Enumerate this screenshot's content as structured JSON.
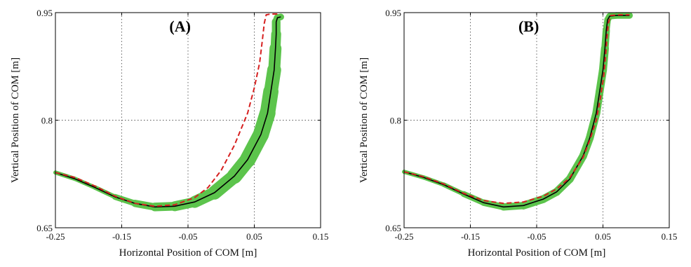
{
  "chart_data": [
    {
      "type": "line",
      "panel_label": "(A)",
      "xlabel": "Horizontal Position of COM [m]",
      "ylabel": "Vertical Position of COM [m]",
      "xlim": [
        -0.25,
        0.15
      ],
      "ylim": [
        0.65,
        0.95
      ],
      "xticks": [
        "-0.25",
        "-0.15",
        "-0.05",
        "0.05",
        "0.15"
      ],
      "yticks": [
        "0.65",
        "0.8",
        "0.95"
      ],
      "grid": true,
      "series": [
        {
          "style": "green-band",
          "color": "#5cc44c",
          "x": [
            -0.25,
            -0.22,
            -0.19,
            -0.16,
            -0.13,
            -0.1,
            -0.07,
            -0.04,
            -0.01,
            0.02,
            0.04,
            0.06,
            0.07,
            0.075,
            0.08,
            0.082,
            0.083,
            0.083,
            0.085,
            0.09
          ],
          "y": [
            0.727,
            0.718,
            0.706,
            0.693,
            0.684,
            0.679,
            0.68,
            0.686,
            0.699,
            0.722,
            0.745,
            0.78,
            0.81,
            0.84,
            0.87,
            0.9,
            0.92,
            0.937,
            0.943,
            0.944
          ],
          "band_halfwidth": [
            0.003,
            0.003,
            0.003,
            0.004,
            0.005,
            0.006,
            0.007,
            0.008,
            0.01,
            0.011,
            0.012,
            0.012,
            0.012,
            0.011,
            0.01,
            0.008,
            0.007,
            0.006,
            0.005,
            0.005
          ]
        },
        {
          "style": "solid",
          "color": "#000000",
          "x": [
            -0.25,
            -0.22,
            -0.19,
            -0.16,
            -0.13,
            -0.1,
            -0.07,
            -0.04,
            -0.01,
            0.02,
            0.04,
            0.06,
            0.07,
            0.075,
            0.08,
            0.082,
            0.083,
            0.083,
            0.085,
            0.09
          ],
          "y": [
            0.727,
            0.718,
            0.706,
            0.693,
            0.684,
            0.679,
            0.68,
            0.686,
            0.699,
            0.722,
            0.745,
            0.78,
            0.81,
            0.84,
            0.87,
            0.9,
            0.92,
            0.937,
            0.943,
            0.944
          ]
        },
        {
          "style": "dashed",
          "color": "#d62020",
          "x": [
            -0.25,
            -0.22,
            -0.19,
            -0.16,
            -0.13,
            -0.1,
            -0.07,
            -0.04,
            -0.02,
            0.0,
            0.02,
            0.04,
            0.05,
            0.058,
            0.062,
            0.065,
            0.068,
            0.075,
            0.085
          ],
          "y": [
            0.727,
            0.72,
            0.708,
            0.694,
            0.684,
            0.68,
            0.682,
            0.692,
            0.706,
            0.73,
            0.765,
            0.81,
            0.845,
            0.88,
            0.91,
            0.935,
            0.947,
            0.948,
            0.948
          ]
        }
      ]
    },
    {
      "type": "line",
      "panel_label": "(B)",
      "xlabel": "Horizontal Position of COM [m]",
      "ylabel": "Vertical Position of COM [m]",
      "xlim": [
        -0.25,
        0.15
      ],
      "ylim": [
        0.65,
        0.95
      ],
      "xticks": [
        "-0.25",
        "-0.15",
        "-0.05",
        "0.05",
        "0.15"
      ],
      "yticks": [
        "0.65",
        "0.8",
        "0.95"
      ],
      "grid": true,
      "series": [
        {
          "style": "green-band",
          "color": "#5cc44c",
          "x": [
            -0.25,
            -0.22,
            -0.19,
            -0.16,
            -0.13,
            -0.1,
            -0.07,
            -0.04,
            -0.02,
            0.0,
            0.02,
            0.03,
            0.04,
            0.045,
            0.05,
            0.053,
            0.055,
            0.057,
            0.06,
            0.07,
            0.09
          ],
          "y": [
            0.728,
            0.72,
            0.71,
            0.697,
            0.685,
            0.679,
            0.681,
            0.69,
            0.7,
            0.718,
            0.75,
            0.775,
            0.81,
            0.84,
            0.87,
            0.9,
            0.925,
            0.94,
            0.945,
            0.946,
            0.946
          ],
          "band_halfwidth": [
            0.003,
            0.003,
            0.003,
            0.004,
            0.005,
            0.005,
            0.006,
            0.006,
            0.006,
            0.006,
            0.006,
            0.006,
            0.006,
            0.006,
            0.006,
            0.006,
            0.005,
            0.005,
            0.005,
            0.005,
            0.005
          ]
        },
        {
          "style": "solid",
          "color": "#000000",
          "x": [
            -0.25,
            -0.22,
            -0.19,
            -0.16,
            -0.13,
            -0.1,
            -0.07,
            -0.04,
            -0.02,
            0.0,
            0.02,
            0.03,
            0.04,
            0.045,
            0.05,
            0.053,
            0.055,
            0.057,
            0.06,
            0.07,
            0.09
          ],
          "y": [
            0.728,
            0.72,
            0.71,
            0.697,
            0.685,
            0.679,
            0.681,
            0.69,
            0.7,
            0.718,
            0.75,
            0.775,
            0.81,
            0.84,
            0.87,
            0.9,
            0.925,
            0.94,
            0.945,
            0.946,
            0.946
          ]
        },
        {
          "style": "dashed",
          "color": "#d62020",
          "x": [
            -0.25,
            -0.22,
            -0.19,
            -0.16,
            -0.13,
            -0.1,
            -0.07,
            -0.04,
            -0.02,
            0.0,
            0.02,
            0.03,
            0.04,
            0.046,
            0.051,
            0.054,
            0.056,
            0.058,
            0.062,
            0.075,
            0.09
          ],
          "y": [
            0.728,
            0.721,
            0.711,
            0.698,
            0.688,
            0.684,
            0.686,
            0.694,
            0.704,
            0.72,
            0.748,
            0.772,
            0.8,
            0.83,
            0.86,
            0.89,
            0.915,
            0.935,
            0.946,
            0.947,
            0.947
          ]
        }
      ]
    }
  ]
}
